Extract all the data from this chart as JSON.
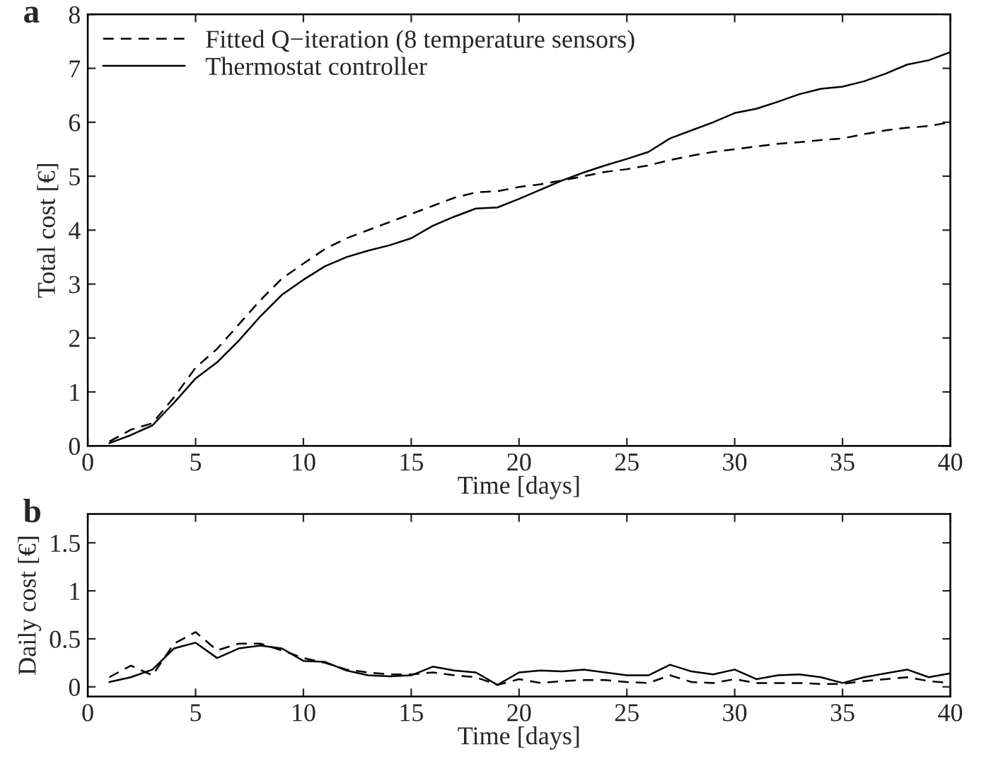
{
  "chart_data": [
    {
      "type": "line",
      "xlabel": "Time [days]",
      "ylabel": "Total cost [€]",
      "annotations": [
        "a"
      ],
      "legend": "top left",
      "grid": false,
      "marker": "none",
      "x": [
        1,
        2,
        3,
        4,
        5,
        6,
        7,
        8,
        9,
        10,
        11,
        12,
        13,
        14,
        15,
        16,
        17,
        18,
        19,
        20,
        21,
        22,
        23,
        24,
        25,
        26,
        27,
        28,
        29,
        30,
        31,
        32,
        33,
        34,
        35,
        36,
        37,
        38,
        39,
        40
      ],
      "xlim": [
        0,
        40
      ],
      "xticks": [
        0,
        5,
        10,
        15,
        20,
        25,
        30,
        35,
        40
      ],
      "ylim": [
        0,
        8
      ],
      "yticks": [
        0,
        1,
        2,
        3,
        4,
        5,
        6,
        7,
        8
      ],
      "series": [
        {
          "name": "Fitted Q−iteration (8 temperature sensors)",
          "color": "#000000",
          "line_style": "dashed",
          "values": [
            0.08,
            0.3,
            0.42,
            0.9,
            1.45,
            1.8,
            2.25,
            2.7,
            3.1,
            3.38,
            3.65,
            3.85,
            4.0,
            4.15,
            4.3,
            4.45,
            4.6,
            4.7,
            4.72,
            4.8,
            4.85,
            4.92,
            5.0,
            5.08,
            5.13,
            5.2,
            5.3,
            5.38,
            5.45,
            5.5,
            5.55,
            5.6,
            5.63,
            5.67,
            5.7,
            5.78,
            5.85,
            5.9,
            5.93,
            6.0
          ]
        },
        {
          "name": "Thermostat controller",
          "color": "#000000",
          "line_style": "solid",
          "values": [
            0.05,
            0.2,
            0.38,
            0.8,
            1.25,
            1.55,
            1.95,
            2.4,
            2.8,
            3.08,
            3.33,
            3.5,
            3.62,
            3.72,
            3.85,
            4.08,
            4.25,
            4.4,
            4.42,
            4.58,
            4.75,
            4.92,
            5.07,
            5.2,
            5.32,
            5.45,
            5.7,
            5.85,
            6.0,
            6.17,
            6.25,
            6.38,
            6.52,
            6.62,
            6.66,
            6.76,
            6.9,
            7.07,
            7.15,
            7.3
          ]
        }
      ]
    },
    {
      "type": "line",
      "xlabel": "Time [days]",
      "ylabel": "Daily cost [€]",
      "annotations": [
        "b"
      ],
      "grid": false,
      "marker": "none",
      "x": [
        1,
        2,
        3,
        4,
        5,
        6,
        7,
        8,
        9,
        10,
        11,
        12,
        13,
        14,
        15,
        16,
        17,
        18,
        19,
        20,
        21,
        22,
        23,
        24,
        25,
        26,
        27,
        28,
        29,
        30,
        31,
        32,
        33,
        34,
        35,
        36,
        37,
        38,
        39,
        40
      ],
      "xlim": [
        0,
        40
      ],
      "xticks": [
        0,
        5,
        10,
        15,
        20,
        25,
        30,
        35,
        40
      ],
      "ylim": [
        -0.1,
        1.8
      ],
      "yticks": [
        0,
        0.5,
        1,
        1.5
      ],
      "series": [
        {
          "color": "#000000",
          "line_style": "dashed",
          "values": [
            0.1,
            0.22,
            0.12,
            0.45,
            0.57,
            0.38,
            0.45,
            0.45,
            0.38,
            0.3,
            0.25,
            0.18,
            0.15,
            0.13,
            0.13,
            0.15,
            0.12,
            0.1,
            0.02,
            0.08,
            0.04,
            0.06,
            0.07,
            0.07,
            0.05,
            0.04,
            0.12,
            0.05,
            0.04,
            0.08,
            0.04,
            0.04,
            0.04,
            0.03,
            0.03,
            0.06,
            0.08,
            0.1,
            0.06,
            0.04
          ]
        },
        {
          "color": "#000000",
          "line_style": "solid",
          "values": [
            0.05,
            0.1,
            0.18,
            0.4,
            0.46,
            0.3,
            0.4,
            0.43,
            0.4,
            0.27,
            0.26,
            0.17,
            0.12,
            0.11,
            0.12,
            0.21,
            0.17,
            0.15,
            0.02,
            0.15,
            0.17,
            0.16,
            0.18,
            0.15,
            0.12,
            0.12,
            0.23,
            0.16,
            0.13,
            0.18,
            0.08,
            0.12,
            0.13,
            0.1,
            0.04,
            0.1,
            0.14,
            0.18,
            0.1,
            0.14
          ]
        }
      ]
    }
  ]
}
